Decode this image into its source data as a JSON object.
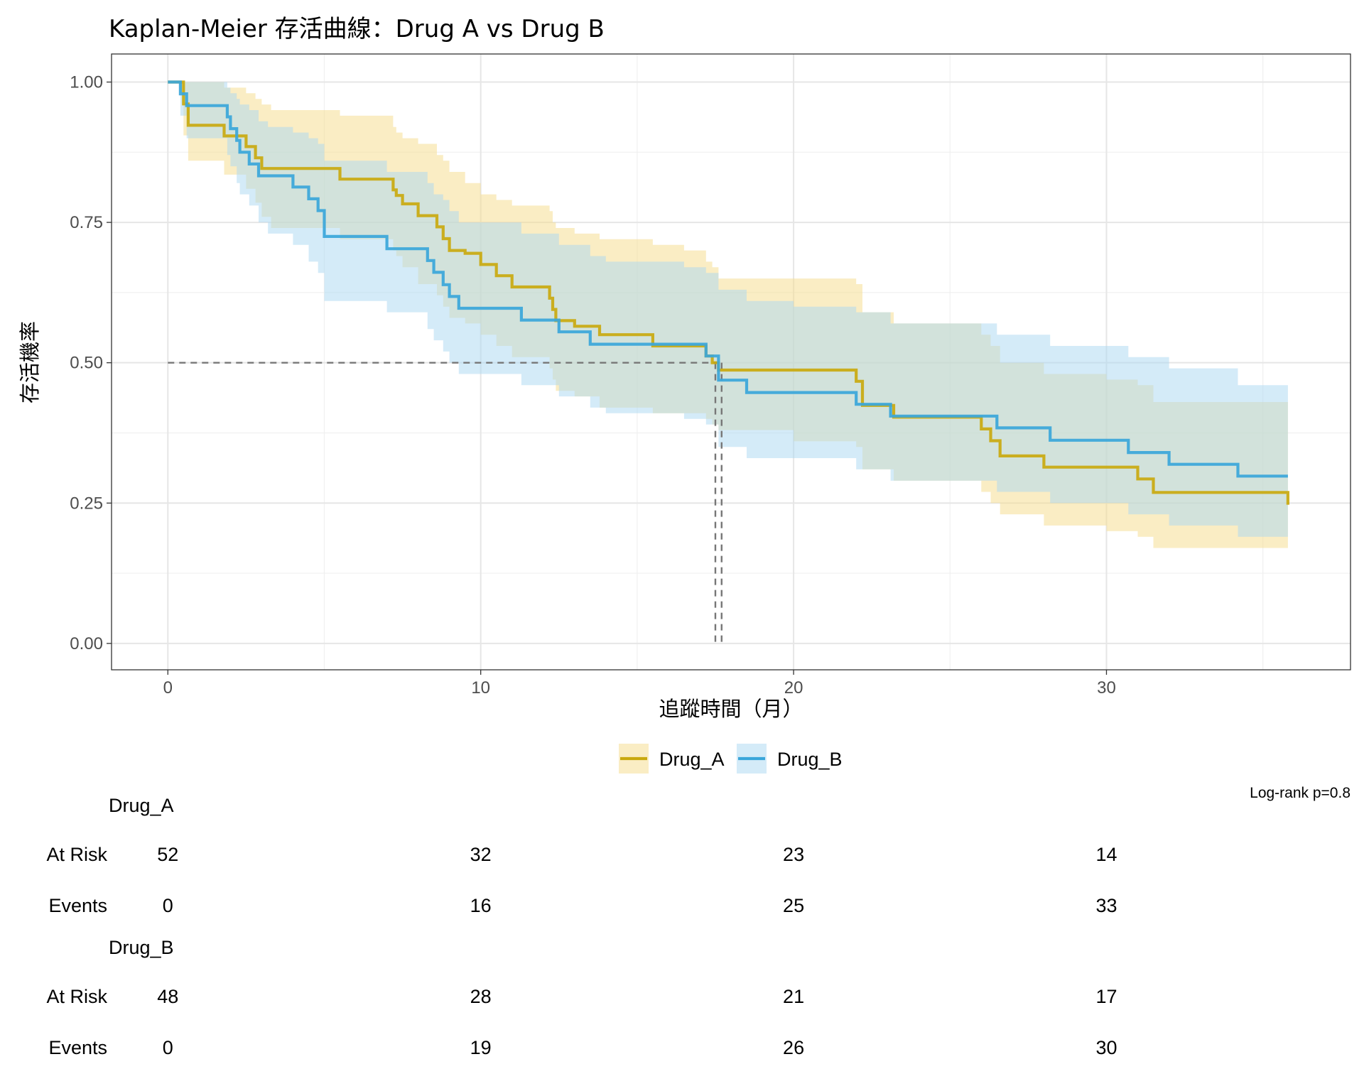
{
  "chart_data": {
    "type": "line",
    "subtype": "kaplan-meier-step",
    "title": "Kaplan-Meier 存活曲線：Drug A vs Drug B",
    "xlabel": "追蹤時間（月）",
    "ylabel": "存活機率",
    "xlim": [
      -1.8,
      37.8
    ],
    "ylim": [
      -0.047,
      1.05
    ],
    "xticks": [
      0,
      10,
      20,
      30
    ],
    "xtick_labels": [
      "0",
      "10",
      "20",
      "30"
    ],
    "yticks": [
      0,
      0.25,
      0.5,
      0.75,
      1.0
    ],
    "ytick_labels": [
      "0.00",
      "0.25",
      "0.50",
      "0.75",
      "1.00"
    ],
    "grid": true,
    "legend_position": "bottom",
    "median_line": {
      "survival": 0.5,
      "times": [
        17.5,
        17.7
      ]
    },
    "p_value_text": "Log-rank p=0.8",
    "series": [
      {
        "name": "Drug_A",
        "color": "#C9A90F",
        "fill": "#F5DC8A",
        "x": [
          0,
          0.5,
          0.65,
          1.8,
          2.5,
          2.8,
          3.0,
          3.3,
          5.5,
          7.2,
          7.3,
          7.5,
          8.0,
          8.6,
          8.8,
          9.0,
          9.5,
          10.0,
          10.5,
          11.0,
          12.2,
          12.3,
          12.4,
          13.0,
          13.8,
          15.5,
          16.5,
          17.2,
          17.4,
          17.6,
          20.0,
          22.0,
          22.2,
          23.2,
          25.0,
          26.0,
          26.3,
          26.6,
          28.0,
          30.0,
          31.0,
          31.5,
          35.8
        ],
        "y": [
          1.0,
          0.961,
          0.923,
          0.904,
          0.885,
          0.865,
          0.846,
          0.846,
          0.827,
          0.808,
          0.798,
          0.783,
          0.762,
          0.742,
          0.721,
          0.7,
          0.695,
          0.675,
          0.655,
          0.635,
          0.615,
          0.595,
          0.575,
          0.565,
          0.55,
          0.53,
          0.53,
          0.512,
          0.5,
          0.487,
          0.487,
          0.467,
          0.424,
          0.403,
          0.403,
          0.382,
          0.361,
          0.334,
          0.314,
          0.314,
          0.293,
          0.269,
          0.247
        ],
        "lower": [
          1.0,
          0.905,
          0.86,
          0.835,
          0.81,
          0.785,
          0.76,
          0.74,
          0.72,
          0.7,
          0.69,
          0.67,
          0.64,
          0.62,
          0.6,
          0.58,
          0.57,
          0.55,
          0.53,
          0.51,
          0.49,
          0.47,
          0.45,
          0.44,
          0.42,
          0.41,
          0.41,
          0.4,
          0.39,
          0.38,
          0.36,
          0.35,
          0.31,
          0.29,
          0.29,
          0.27,
          0.25,
          0.23,
          0.21,
          0.2,
          0.19,
          0.17,
          0.15
        ],
        "upper": [
          1.0,
          1.0,
          1.0,
          0.99,
          0.98,
          0.97,
          0.96,
          0.95,
          0.94,
          0.92,
          0.91,
          0.9,
          0.89,
          0.87,
          0.86,
          0.84,
          0.82,
          0.8,
          0.79,
          0.78,
          0.77,
          0.75,
          0.74,
          0.73,
          0.72,
          0.71,
          0.7,
          0.68,
          0.67,
          0.65,
          0.65,
          0.64,
          0.59,
          0.57,
          0.57,
          0.55,
          0.53,
          0.5,
          0.48,
          0.47,
          0.46,
          0.43,
          0.4
        ]
      },
      {
        "name": "Drug_B",
        "color": "#3AA6DA",
        "fill": "#A9D8F2",
        "x": [
          0,
          0.4,
          0.6,
          1.9,
          2.0,
          2.2,
          2.3,
          2.6,
          2.9,
          3.2,
          4.0,
          4.5,
          4.8,
          5.0,
          7.0,
          8.3,
          8.5,
          8.8,
          9.0,
          9.3,
          11.3,
          12.5,
          13.5,
          14.0,
          16.5,
          17.2,
          17.6,
          18.5,
          20.0,
          22.0,
          23.1,
          26.0,
          26.5,
          28.2,
          30.0,
          30.7,
          32.0,
          34.2,
          35.8
        ],
        "y": [
          1.0,
          0.979,
          0.958,
          0.938,
          0.917,
          0.896,
          0.875,
          0.854,
          0.833,
          0.833,
          0.813,
          0.792,
          0.771,
          0.725,
          0.703,
          0.682,
          0.661,
          0.639,
          0.618,
          0.597,
          0.576,
          0.555,
          0.533,
          0.533,
          0.533,
          0.512,
          0.469,
          0.447,
          0.447,
          0.426,
          0.405,
          0.405,
          0.384,
          0.362,
          0.362,
          0.34,
          0.319,
          0.298,
          0.298
        ],
        "lower": [
          1.0,
          0.94,
          0.9,
          0.87,
          0.85,
          0.82,
          0.8,
          0.78,
          0.75,
          0.73,
          0.71,
          0.68,
          0.66,
          0.61,
          0.59,
          0.56,
          0.54,
          0.52,
          0.5,
          0.48,
          0.46,
          0.44,
          0.42,
          0.41,
          0.4,
          0.39,
          0.35,
          0.33,
          0.33,
          0.31,
          0.29,
          0.29,
          0.27,
          0.25,
          0.25,
          0.23,
          0.21,
          0.19,
          0.19
        ],
        "upper": [
          1.0,
          1.0,
          1.0,
          0.99,
          0.98,
          0.97,
          0.96,
          0.95,
          0.93,
          0.92,
          0.91,
          0.9,
          0.89,
          0.86,
          0.84,
          0.82,
          0.8,
          0.79,
          0.77,
          0.75,
          0.73,
          0.71,
          0.69,
          0.68,
          0.67,
          0.66,
          0.63,
          0.61,
          0.6,
          0.59,
          0.57,
          0.57,
          0.55,
          0.53,
          0.53,
          0.51,
          0.49,
          0.46,
          0.46
        ]
      }
    ],
    "risk_table": {
      "times": [
        0,
        10,
        20,
        30
      ],
      "row_labels": {
        "at_risk": "At Risk",
        "events": "Events"
      },
      "groups": [
        {
          "name": "Drug_A",
          "at_risk": [
            "52",
            "32",
            "23",
            "14"
          ],
          "events": [
            "0",
            "16",
            "25",
            "33"
          ]
        },
        {
          "name": "Drug_B",
          "at_risk": [
            "48",
            "28",
            "21",
            "17"
          ],
          "events": [
            "0",
            "19",
            "26",
            "30"
          ]
        }
      ]
    }
  }
}
